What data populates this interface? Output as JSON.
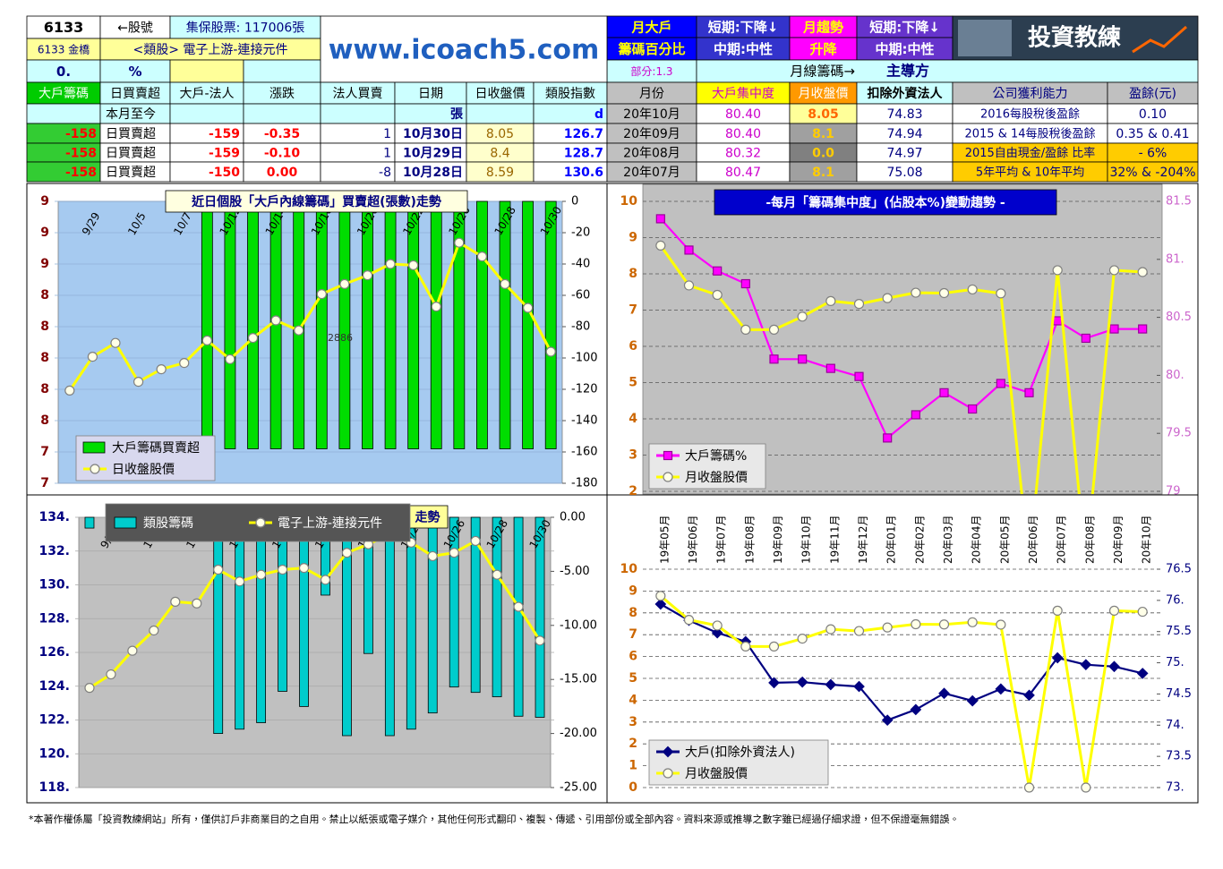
{
  "header": {
    "stock_code": "6133",
    "code_label": "←股號",
    "shares": "集保股票: 117006張",
    "name": "6133 金橋",
    "sector": "<類股> 電子上游-連接元件",
    "pct_value": "0.",
    "pct_unit": "%",
    "site": "www.icoach5.com",
    "monthly_big": [
      "月大戶",
      "籌碼百分比"
    ],
    "trend1": [
      "短期:下降↓",
      "中期:中性"
    ],
    "monthly_trend": [
      "月趨勢",
      "升降"
    ],
    "trend2": [
      "短期:下降↓",
      "中期:中性"
    ],
    "logo": "投資教練",
    "part": "部分:1.3",
    "main": "月線籌碼→",
    "main_value": "主導方"
  },
  "table": {
    "columns": [
      "大戶籌碼",
      "日買賣超",
      "大戶-法人",
      "漲跌",
      "法人買賣",
      "日期",
      "日收盤價",
      "類股指數",
      "月份",
      "大戶集中度",
      "月收盤價",
      "扣除外資法人",
      "公司獲利能力",
      "盈餘(元)"
    ],
    "rows": [
      [
        null,
        "本月至今",
        null,
        null,
        null,
        "張",
        null,
        "d",
        "20年10月",
        "80.40",
        "8.05",
        "74.83",
        "2016每股稅後盈餘",
        "0.10"
      ],
      [
        "-158",
        "日買賣超",
        "-159",
        "-0.35",
        "1",
        "10月30日",
        "8.05",
        "126.7",
        "20年09月",
        "80.40",
        "8.1",
        "74.94",
        "2015 & 14每股稅後盈餘",
        "0.35 & 0.41"
      ],
      [
        "-158",
        "日買賣超",
        "-159",
        "-0.10",
        "1",
        "10月29日",
        "8.4",
        "128.7",
        "20年08月",
        "80.32",
        "0.0",
        "74.97",
        "2015自由現金/盈餘 比率",
        "- 6%"
      ],
      [
        "-158",
        "日買賣超",
        "-150",
        "0.00",
        "-8",
        "10月28日",
        "8.59",
        "130.6",
        "20年07月",
        "80.47",
        "8.1",
        "75.08",
        "5年平均 & 10年平均",
        "32% & -204%"
      ]
    ]
  },
  "chart_data": [
    {
      "type": "combo",
      "title": "近日個股「大戶內線籌碼」買賣超(張數)走勢",
      "annotation": "2886",
      "categories": [
        null,
        "9/29",
        null,
        "10/5",
        null,
        "10/7",
        null,
        "10/12",
        null,
        "10/14",
        null,
        "10/16",
        null,
        "10/20",
        null,
        "10/22",
        null,
        "10/26",
        null,
        "10/28",
        null,
        "10/30"
      ],
      "series": [
        {
          "name": "大戶籌碼買賣超",
          "type": "bar",
          "color": "#00dd00",
          "axis": "y2",
          "values": [
            null,
            null,
            null,
            null,
            null,
            null,
            -158,
            -158,
            -158,
            -158,
            -158,
            -158,
            -158,
            -158,
            -158,
            -158,
            -158,
            -158,
            -158,
            -158,
            -158,
            -158
          ]
        },
        {
          "name": "日收盤股價",
          "type": "line",
          "color": "#ffff00",
          "marker": "circle",
          "values": [
            7.74,
            8.01,
            8.12,
            7.81,
            7.91,
            7.96,
            8.14,
            7.99,
            8.16,
            8.3,
            8.22,
            8.51,
            8.59,
            8.66,
            8.75,
            8.74,
            8.41,
            8.92,
            8.81,
            8.59,
            8.4,
            8.05
          ]
        }
      ],
      "ylim": [
        7,
        9.25
      ],
      "yticks": [
        7,
        {
          "value": 7.25,
          "label": "7"
        },
        {
          "value": 7.5,
          "label": "8"
        },
        {
          "value": 7.75,
          "label": "8"
        },
        8,
        {
          "value": 8.25,
          "label": "8"
        },
        {
          "value": 8.5,
          "label": "8"
        },
        {
          "value": 8.75,
          "label": "9"
        },
        9,
        {
          "value": 9.25,
          "label": "9"
        }
      ],
      "y2lim": [
        -180,
        0
      ],
      "y2ticks": [
        0,
        -20,
        -40,
        -60,
        -80,
        -100,
        -120,
        -140,
        -160,
        -180
      ],
      "grid": true,
      "legend": "bottom-left"
    },
    {
      "type": "line",
      "title": "-每月「籌碼集中度」(佔股本%)變動趨勢 -",
      "series": [
        {
          "name": "大戶籌碼%",
          "color": "#ff00ff",
          "marker": "square",
          "axis": "y2",
          "values": [
            81.35,
            81.08,
            80.9,
            80.79,
            80.14,
            80.14,
            80.06,
            79.99,
            79.46,
            79.66,
            79.85,
            79.71,
            79.93,
            79.85,
            80.47,
            80.32,
            80.4,
            80.4
          ]
        },
        {
          "name": "月收盤股價",
          "color": "#ffff00",
          "marker": "circle",
          "values": [
            8.78,
            7.68,
            7.42,
            6.46,
            6.46,
            6.82,
            7.25,
            7.17,
            7.33,
            7.48,
            7.47,
            7.57,
            7.46,
            0.0,
            8.1,
            0.0,
            8.1,
            8.05
          ]
        }
      ],
      "ylim": [
        2,
        10
      ],
      "yticks": [
        2,
        3,
        4,
        5,
        6,
        7,
        8,
        9,
        10
      ],
      "y2lim": [
        79,
        81.5
      ],
      "y2ticks": [
        79,
        79.5,
        {
          "value": 80,
          "label": "80."
        },
        80.5,
        {
          "value": 81,
          "label": "81."
        },
        81.5
      ],
      "grid": true,
      "legend": "bottom-left"
    },
    {
      "type": "combo",
      "title": "走勢",
      "categories": [
        null,
        "9/29",
        null,
        "10/5",
        null,
        "10/7",
        null,
        "10/12",
        null,
        "10/14",
        null,
        "10/16",
        null,
        "10/20",
        null,
        "10/22",
        null,
        "10/26",
        null,
        "10/28",
        null,
        "10/30"
      ],
      "series": [
        {
          "name": "類股籌碼",
          "type": "bar",
          "color": "#00cccc",
          "axis": "y2",
          "values": [
            -1.0,
            null,
            null,
            null,
            null,
            null,
            -20.0,
            -19.6,
            -19.0,
            -16.1,
            -17.5,
            -7.2,
            -20.2,
            -12.6,
            -20.2,
            -19.6,
            -18.1,
            -15.7,
            -16.2,
            -16.6,
            -18.4,
            -18.5
          ]
        },
        {
          "name": "電子上游-連接元件",
          "type": "line",
          "color": "#ffff00",
          "marker": "circle",
          "values": [
            123.9,
            124.7,
            126.1,
            127.3,
            129.0,
            128.9,
            130.9,
            130.2,
            130.6,
            130.9,
            131.0,
            130.3,
            131.9,
            132.4,
            133.0,
            132.5,
            131.7,
            131.9,
            132.6,
            130.6,
            128.7,
            126.7
          ]
        }
      ],
      "ylim": [
        118,
        134
      ],
      "yticks": [
        {
          "value": 118,
          "label": "118."
        },
        {
          "value": 120,
          "label": "120."
        },
        {
          "value": 122,
          "label": "122."
        },
        {
          "value": 124,
          "label": "124."
        },
        {
          "value": 126,
          "label": "126."
        },
        {
          "value": 128,
          "label": "128."
        },
        {
          "value": 130,
          "label": "130."
        },
        {
          "value": 132,
          "label": "132."
        },
        {
          "value": 134,
          "label": "134."
        }
      ],
      "y2lim": [
        -25,
        0
      ],
      "y2ticks": [
        {
          "value": 0,
          "label": "0.00"
        },
        {
          "value": -5,
          "label": "-5.00"
        },
        {
          "value": -10,
          "label": "-10.00"
        },
        {
          "value": -15,
          "label": "-15.00"
        },
        {
          "value": -20,
          "label": "-20.00"
        },
        {
          "value": -25,
          "label": "-25.00"
        }
      ],
      "grid": true,
      "legend": "top-left"
    },
    {
      "type": "line",
      "categories": [
        "19年05月",
        "19年06月",
        "19年07月",
        "19年08月",
        "19年09月",
        "19年10月",
        "19年11月",
        "19年12月",
        "20年01月",
        "20年02月",
        "20年03月",
        "20年04月",
        "20年05月",
        "20年06月",
        "20年07月",
        "20年08月",
        "20年09月",
        "20年10月"
      ],
      "series": [
        {
          "name": "大戶(扣除外資法人)",
          "color": "#000080",
          "marker": "diamond",
          "axis": "y2",
          "values": [
            75.94,
            75.68,
            75.48,
            75.34,
            74.68,
            74.69,
            74.65,
            74.62,
            74.08,
            74.25,
            74.51,
            74.39,
            74.58,
            74.48,
            75.08,
            74.97,
            74.94,
            74.83
          ]
        },
        {
          "name": "月收盤股價",
          "color": "#ffff00",
          "marker": "circle",
          "values": [
            8.78,
            7.68,
            7.42,
            6.46,
            6.46,
            6.82,
            7.25,
            7.17,
            7.33,
            7.48,
            7.47,
            7.57,
            7.46,
            0.0,
            8.1,
            0.0,
            8.1,
            8.05
          ]
        }
      ],
      "ylim": [
        0,
        10
      ],
      "yticks": [
        0,
        1,
        2,
        3,
        4,
        5,
        6,
        7,
        8,
        9,
        10
      ],
      "y2lim": [
        73,
        76.5
      ],
      "y2ticks": [
        {
          "value": 73,
          "label": "73."
        },
        73.5,
        {
          "value": 74,
          "label": "74."
        },
        74.5,
        {
          "value": 75,
          "label": "75."
        },
        75.5,
        {
          "value": 76,
          "label": "76."
        },
        76.5
      ],
      "grid": true,
      "legend": "bottom-left"
    }
  ],
  "footer": "*本著作權係屬「投資教練網站」所有，僅供訂戶非商業目的之自用。禁止以紙張或電子媒介，其他任何形式翻印、複製、傳遞、引用部份或全部內容。資料來源或推導之數字雖已經過仔細求證，但不保證毫無錯誤。"
}
